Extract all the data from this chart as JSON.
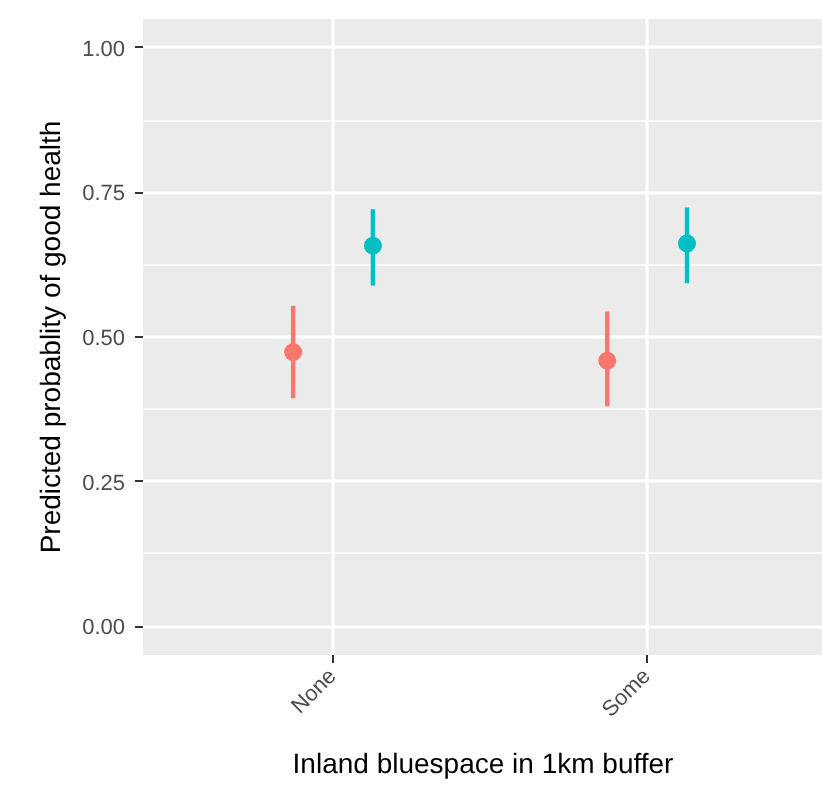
{
  "chart_data": {
    "type": "scatter",
    "xlabel": "Inland bluespace in 1km buffer",
    "ylabel": "Predicted probablity of good health",
    "categories": [
      "None",
      "Some"
    ],
    "series": [
      {
        "color": "#f8766d",
        "values": [
          0.474,
          0.459
        ],
        "errors": [
          [
            0.394,
            0.554
          ],
          [
            0.38,
            0.544
          ]
        ]
      },
      {
        "color": "#00bfc4",
        "values": [
          0.658,
          0.662
        ],
        "errors": [
          [
            0.589,
            0.721
          ],
          [
            0.593,
            0.724
          ]
        ]
      }
    ],
    "ylim": [
      -0.05,
      1.05
    ],
    "yticks": [
      {
        "value": 0,
        "label": "0.00"
      },
      {
        "value": 0.25,
        "label": "0.25"
      },
      {
        "value": 0.5,
        "label": "0.50"
      },
      {
        "value": 0.75,
        "label": "0.75"
      },
      {
        "value": 1,
        "label": "1.00"
      }
    ],
    "grid": true,
    "marker": "circle"
  }
}
